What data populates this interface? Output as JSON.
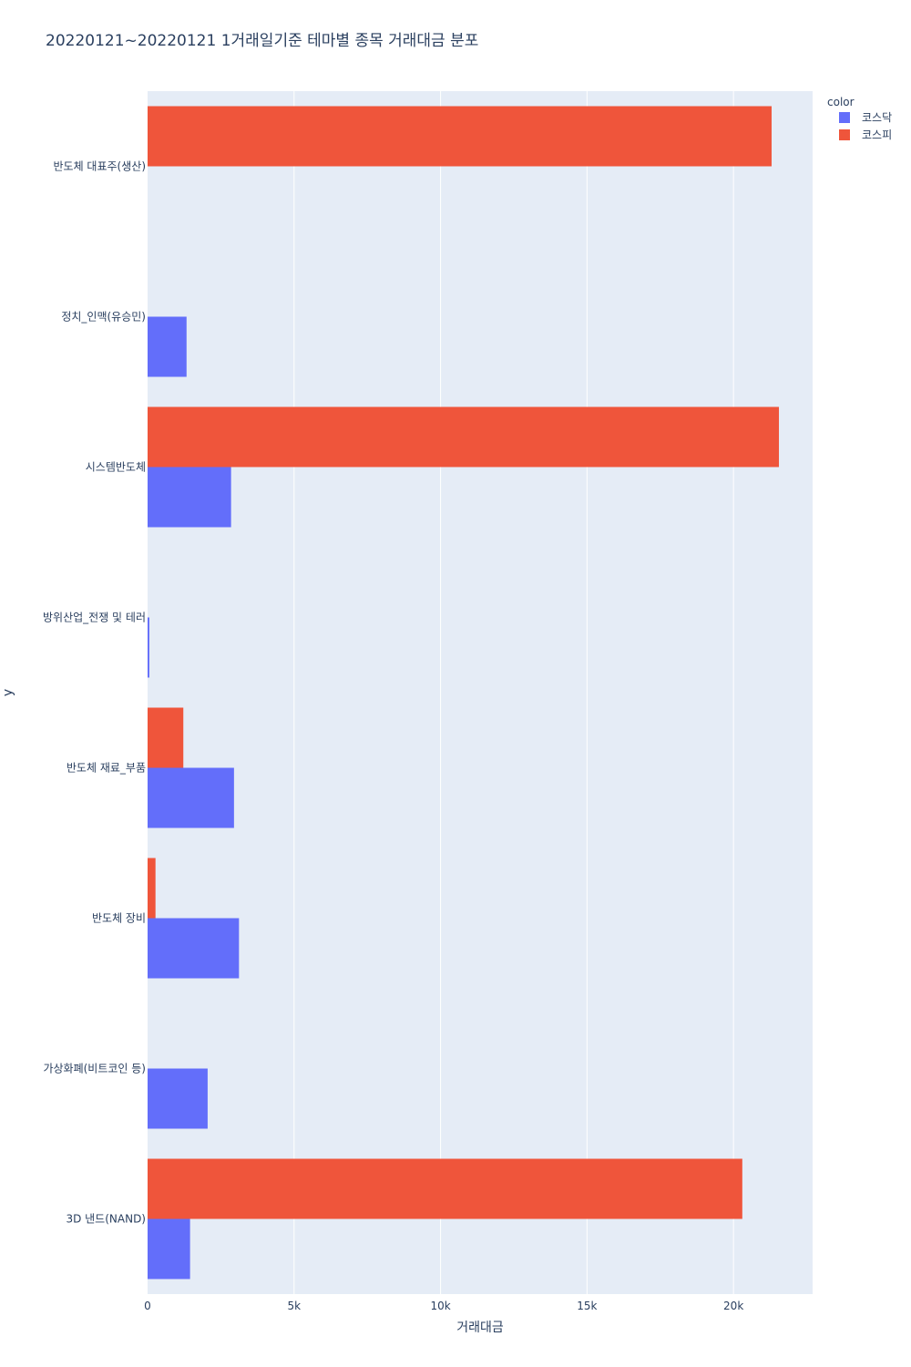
{
  "chart_data": {
    "type": "bar",
    "orientation": "horizontal",
    "barmode": "group",
    "title": "20220121~20220121 1거래일기준 테마별 종목 거래대금 분포",
    "xlabel": "거래대금",
    "ylabel": "y",
    "xlim": [
      0,
      22700
    ],
    "x_ticks": [
      0,
      5000,
      10000,
      15000,
      20000
    ],
    "x_tick_labels": [
      "0",
      "5k",
      "10k",
      "15k",
      "20k"
    ],
    "categories": [
      "반도체 대표주(생산)",
      "정치_인맥(유승민)",
      "시스템반도체",
      "방위산업_전쟁 및 테러",
      "반도체 재료_부품",
      "반도체 장비",
      "가상화폐(비트코인 등)",
      "3D 낸드(NAND)"
    ],
    "series": [
      {
        "name": "코스닥",
        "color": "#636efa",
        "values": [
          0,
          1330,
          2850,
          60,
          2950,
          3120,
          2050,
          1450
        ]
      },
      {
        "name": "코스피",
        "color": "#ef553b",
        "values": [
          21300,
          0,
          21550,
          0,
          1220,
          270,
          0,
          20300
        ]
      }
    ],
    "grid": true,
    "legend": {
      "title": "color",
      "position": "top-right"
    },
    "colors": {
      "plot_bg": "#e5ecf6",
      "grid": "#ffffff",
      "text": "#2a3f5f"
    }
  }
}
